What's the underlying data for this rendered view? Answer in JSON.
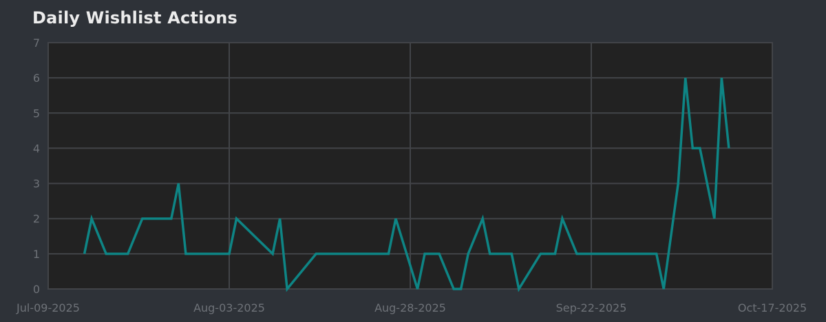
{
  "title": "Daily Wishlist Actions",
  "colors": {
    "page_background": "#2e3238",
    "plot_background": "#222222",
    "grid": "#424448",
    "line": "#0e8585",
    "tick_text": "#6e7278",
    "title_text": "#ececec"
  },
  "chart_data": {
    "type": "line",
    "title": "Daily Wishlist Actions",
    "xlabel": "",
    "ylabel": "",
    "x_ticks": [
      "Jul-09-2025",
      "Aug-03-2025",
      "Aug-28-2025",
      "Sep-22-2025",
      "Oct-17-2025"
    ],
    "xlim": [
      "2025-07-09",
      "2025-10-17"
    ],
    "y_ticks": [
      0,
      1,
      2,
      3,
      4,
      5,
      6,
      7
    ],
    "ylim": [
      0,
      7
    ],
    "grid": true,
    "series": [
      {
        "name": "",
        "color": "#0e8585",
        "points": [
          {
            "x": "2025-07-14",
            "y": 1
          },
          {
            "x": "2025-07-15",
            "y": 2
          },
          {
            "x": "2025-07-17",
            "y": 1
          },
          {
            "x": "2025-07-20",
            "y": 1
          },
          {
            "x": "2025-07-22",
            "y": 2
          },
          {
            "x": "2025-07-26",
            "y": 2
          },
          {
            "x": "2025-07-27",
            "y": 3
          },
          {
            "x": "2025-07-28",
            "y": 1
          },
          {
            "x": "2025-08-03",
            "y": 1
          },
          {
            "x": "2025-08-04",
            "y": 2
          },
          {
            "x": "2025-08-09",
            "y": 1
          },
          {
            "x": "2025-08-10",
            "y": 2
          },
          {
            "x": "2025-08-11",
            "y": 0
          },
          {
            "x": "2025-08-15",
            "y": 1
          },
          {
            "x": "2025-08-25",
            "y": 1
          },
          {
            "x": "2025-08-26",
            "y": 2
          },
          {
            "x": "2025-08-29",
            "y": 0
          },
          {
            "x": "2025-08-30",
            "y": 1
          },
          {
            "x": "2025-09-01",
            "y": 1
          },
          {
            "x": "2025-09-03",
            "y": 0
          },
          {
            "x": "2025-09-04",
            "y": 0
          },
          {
            "x": "2025-09-05",
            "y": 1
          },
          {
            "x": "2025-09-07",
            "y": 2
          },
          {
            "x": "2025-09-08",
            "y": 1
          },
          {
            "x": "2025-09-11",
            "y": 1
          },
          {
            "x": "2025-09-12",
            "y": 0
          },
          {
            "x": "2025-09-15",
            "y": 1
          },
          {
            "x": "2025-09-17",
            "y": 1
          },
          {
            "x": "2025-09-18",
            "y": 2
          },
          {
            "x": "2025-09-20",
            "y": 1
          },
          {
            "x": "2025-10-01",
            "y": 1
          },
          {
            "x": "2025-10-02",
            "y": 0
          },
          {
            "x": "2025-10-04",
            "y": 3
          },
          {
            "x": "2025-10-05",
            "y": 6
          },
          {
            "x": "2025-10-06",
            "y": 4
          },
          {
            "x": "2025-10-07",
            "y": 4
          },
          {
            "x": "2025-10-09",
            "y": 2
          },
          {
            "x": "2025-10-10",
            "y": 6
          },
          {
            "x": "2025-10-11",
            "y": 4
          }
        ]
      }
    ]
  }
}
